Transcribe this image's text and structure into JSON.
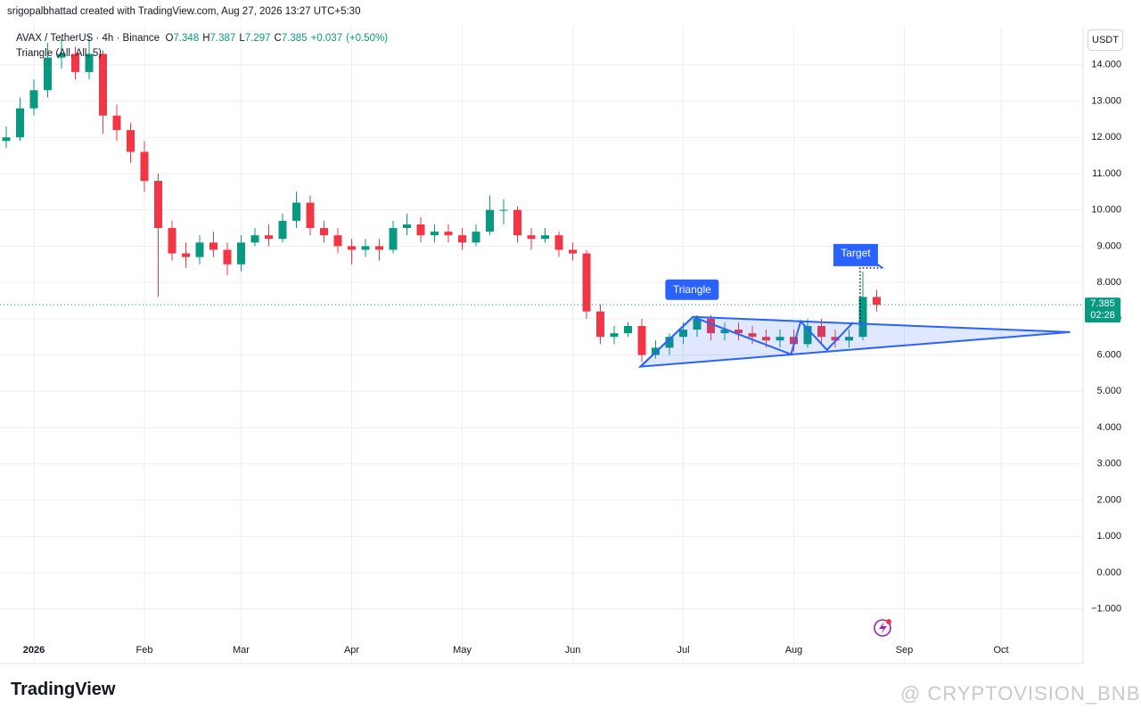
{
  "header": {
    "credit": "srigopalbhattad created with TradingView.com, Aug 27, 2026 13:27 UTC+5:30"
  },
  "legend": {
    "symbol": "AVAX / TetherUS · 4h · Binance",
    "fields": [
      {
        "label": "O",
        "value": 7.348
      },
      {
        "label": "H",
        "value": 7.387
      },
      {
        "label": "L",
        "value": 7.297
      },
      {
        "label": "C",
        "value": 7.385
      }
    ],
    "change": "+0.037",
    "change_pct": "(+0.50%)",
    "indicator": "Triangle (All, All, 5)"
  },
  "chart_data": {
    "type": "candlestick",
    "categories": [
      null,
      null,
      "2026",
      null,
      null,
      null,
      null,
      null,
      null,
      null,
      "Feb",
      null,
      null,
      null,
      null,
      null,
      null,
      "Mar",
      null,
      null,
      null,
      null,
      null,
      null,
      null,
      "Apr",
      null,
      null,
      null,
      null,
      null,
      null,
      null,
      "May",
      null,
      null,
      null,
      null,
      null,
      null,
      null,
      "Jun",
      null,
      null,
      null,
      null,
      null,
      null,
      null,
      "Jul",
      null,
      null,
      null,
      null,
      null,
      null,
      null,
      "Aug",
      null,
      null,
      null,
      null,
      null,
      null,
      null,
      "Sep",
      null,
      null,
      null,
      null,
      null,
      null,
      "Oct",
      null,
      null,
      null,
      null,
      null
    ],
    "open": [
      11.9,
      12.0,
      12.8,
      13.3,
      14.2,
      14.3,
      13.8,
      14.3,
      12.6,
      12.2,
      11.6,
      10.8,
      9.5,
      8.8,
      8.7,
      9.1,
      8.9,
      8.5,
      9.1,
      9.3,
      9.2,
      9.7,
      10.2,
      9.5,
      9.3,
      9.0,
      8.9,
      9.0,
      8.9,
      9.5,
      9.6,
      9.3,
      9.4,
      9.3,
      9.1,
      9.4,
      10.0,
      10.0,
      9.3,
      9.2,
      9.3,
      8.9,
      8.8,
      7.2,
      6.5,
      6.6,
      6.8,
      6.0,
      6.2,
      6.5,
      6.7,
      7.0,
      6.6,
      6.7,
      6.6,
      6.5,
      6.4,
      6.5,
      6.3,
      6.8,
      6.5,
      6.4,
      6.5,
      7.6,
      null,
      null,
      null,
      null,
      null,
      null,
      null,
      null,
      null,
      null,
      null,
      null,
      null,
      null
    ],
    "high": [
      12.3,
      13.1,
      13.6,
      14.6,
      14.7,
      14.5,
      14.8,
      14.4,
      12.9,
      12.4,
      11.9,
      11.0,
      9.7,
      9.1,
      9.3,
      9.4,
      9.1,
      9.3,
      9.5,
      9.6,
      9.9,
      10.5,
      10.4,
      9.7,
      9.5,
      9.2,
      9.2,
      9.2,
      9.7,
      9.9,
      9.8,
      9.6,
      9.6,
      9.5,
      9.6,
      10.4,
      10.3,
      10.1,
      9.5,
      9.5,
      9.4,
      9.1,
      8.9,
      7.4,
      6.8,
      6.9,
      7.0,
      6.4,
      6.6,
      6.9,
      7.1,
      7.1,
      6.9,
      6.9,
      6.8,
      6.7,
      6.7,
      6.7,
      7.0,
      7.0,
      6.7,
      6.7,
      8.3,
      7.8,
      null,
      null,
      null,
      null,
      null,
      null,
      null,
      null,
      null,
      null,
      null,
      null,
      null,
      null
    ],
    "low": [
      11.7,
      11.9,
      12.6,
      13.1,
      13.9,
      13.6,
      13.6,
      12.1,
      11.9,
      11.3,
      10.5,
      7.6,
      8.6,
      8.4,
      8.5,
      8.7,
      8.2,
      8.3,
      9.0,
      9.0,
      9.1,
      9.5,
      9.3,
      9.1,
      8.8,
      8.5,
      8.7,
      8.6,
      8.8,
      9.3,
      9.1,
      9.1,
      9.1,
      8.9,
      9.0,
      9.3,
      9.6,
      9.1,
      8.9,
      9.1,
      8.7,
      8.6,
      7.0,
      6.3,
      6.3,
      6.5,
      5.8,
      5.9,
      6.0,
      6.3,
      6.5,
      6.4,
      6.4,
      6.4,
      6.3,
      6.2,
      6.2,
      6.1,
      6.2,
      6.3,
      6.2,
      6.2,
      6.4,
      7.2,
      null,
      null,
      null,
      null,
      null,
      null,
      null,
      null,
      null,
      null,
      null,
      null,
      null,
      null
    ],
    "close": [
      12.0,
      12.8,
      13.3,
      14.2,
      14.3,
      13.8,
      14.3,
      12.6,
      12.2,
      11.6,
      10.8,
      9.5,
      8.8,
      8.7,
      9.1,
      8.9,
      8.5,
      9.1,
      9.3,
      9.2,
      9.7,
      10.2,
      9.5,
      9.3,
      9.0,
      8.9,
      9.0,
      8.9,
      9.5,
      9.6,
      9.3,
      9.4,
      9.3,
      9.1,
      9.4,
      10.0,
      10.0,
      9.3,
      9.2,
      9.3,
      8.9,
      8.8,
      7.2,
      6.5,
      6.6,
      6.8,
      6.0,
      6.2,
      6.5,
      6.7,
      7.0,
      6.6,
      6.7,
      6.6,
      6.5,
      6.4,
      6.5,
      6.3,
      6.8,
      6.5,
      6.4,
      6.5,
      7.6,
      7.385,
      null,
      null,
      null,
      null,
      null,
      null,
      null,
      null,
      null,
      null,
      null,
      null,
      null,
      null
    ],
    "up_color": "#089981",
    "down_color": "#f23645",
    "ylim": [
      -1.77,
      15.05
    ],
    "yticks": [
      {
        "value": -1,
        "label": "−1.000"
      },
      {
        "value": 0,
        "label": "0.000"
      },
      {
        "value": 1,
        "label": "1.000"
      },
      {
        "value": 2,
        "label": "2.000"
      },
      {
        "value": 3,
        "label": "3.000"
      },
      {
        "value": 4,
        "label": "4.000"
      },
      {
        "value": 5,
        "label": "5.000"
      },
      {
        "value": 6,
        "label": "6.000"
      },
      {
        "value": 7,
        "label": "7.000"
      },
      {
        "value": 8,
        "label": "8.000"
      },
      {
        "value": 9,
        "label": "9.000"
      },
      {
        "value": 10,
        "label": "10.000"
      },
      {
        "value": 11,
        "label": "11.000"
      },
      {
        "value": 12,
        "label": "12.000"
      },
      {
        "value": 13,
        "label": "13.000"
      },
      {
        "value": 14,
        "label": "14.000"
      }
    ],
    "grid": true,
    "currency": "USDT",
    "countdown": "02:28",
    "triangle": {
      "label": "Triangle",
      "color": "#2962ff",
      "outline_x": [
        45.9,
        49.7,
        77
      ],
      "outline_y": [
        5.68,
        7.05,
        6.63
      ],
      "zigzag_x": [
        45.9,
        49.7,
        56.8,
        57.5,
        59.4,
        61.3
      ],
      "zigzag_y": [
        5.68,
        7.05,
        6.02,
        6.93,
        6.14,
        6.9
      ]
    },
    "target": {
      "label": "Target",
      "x": [
        61.8,
        61.8,
        63.4
      ],
      "y": [
        6.9,
        8.4,
        8.4
      ]
    }
  },
  "footer": {
    "brand": "TradingView",
    "watermark": "@ CRYPTOVISION_BNB"
  }
}
